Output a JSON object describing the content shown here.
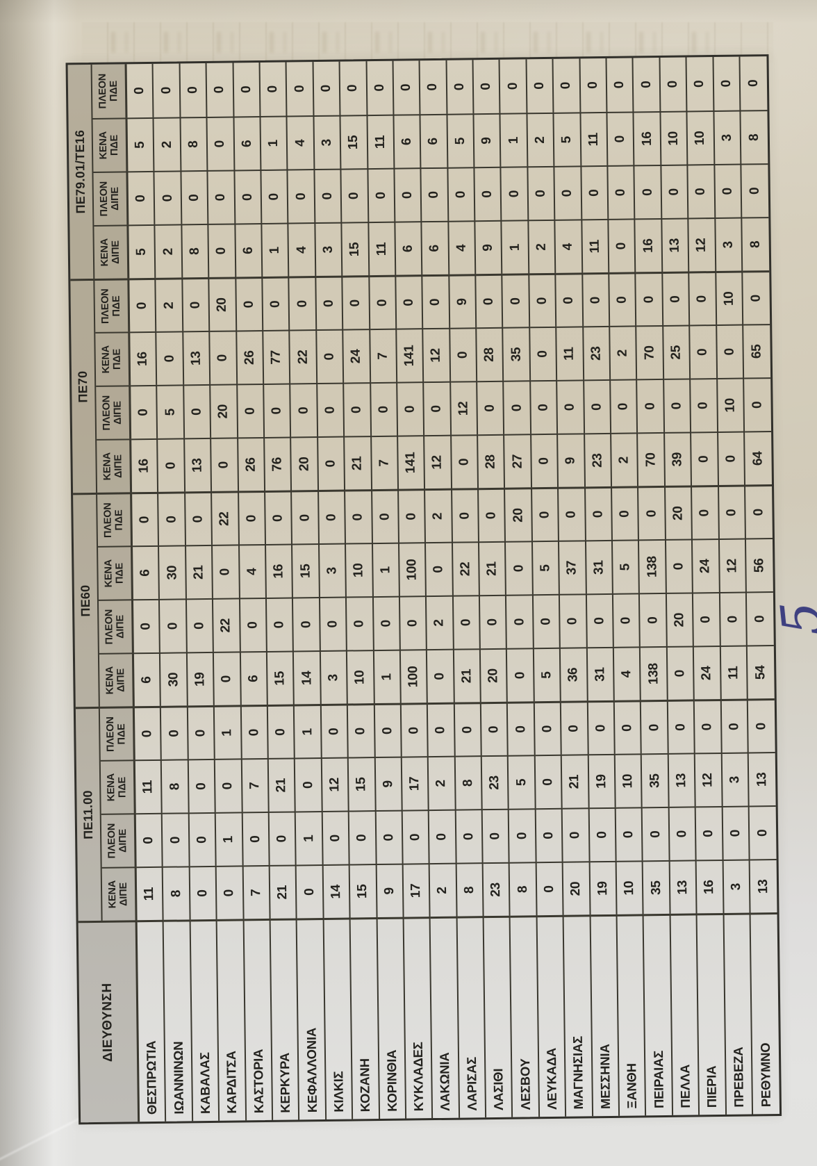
{
  "document": {
    "kind": "scanned_table_photo_rotated_90ccw",
    "annotations": {
      "handwritten_page_number": "5"
    },
    "colors": {
      "paper_beige": "#d1c9b5",
      "paper_gray": "#e2e2e0",
      "header_fill": "#b2aa98",
      "grid_line": "#38362f",
      "ink": "#23221e",
      "pen_blue": "#3e4080"
    },
    "table": {
      "corner_header": "ΔΙΕΥΘΥΝΣΗ",
      "groups": [
        {
          "label": "ΠΕ11.00"
        },
        {
          "label": "ΠΕ60"
        },
        {
          "label": "ΠΕ70"
        },
        {
          "label": "ΠΕ79.01/ΤΕ16"
        }
      ],
      "sub_headers": [
        {
          "line1": "ΚΕΝΑ",
          "line2": "ΔΙΠΕ"
        },
        {
          "line1": "ΠΛΕΟΝ",
          "line2": "ΔΙΠΕ"
        },
        {
          "line1": "ΚΕΝΑ",
          "line2": "ΠΔΕ"
        },
        {
          "line1": "ΠΛΕΟΝ",
          "line2": "ΠΔΕ"
        }
      ],
      "rows": [
        {
          "label": "ΘΕΣΠΡΩΤΙΑ",
          "values": [
            11,
            0,
            11,
            0,
            6,
            0,
            6,
            0,
            16,
            0,
            16,
            0,
            5,
            0,
            5,
            0
          ]
        },
        {
          "label": "ΙΩΑΝΝΙΝΩΝ",
          "values": [
            8,
            0,
            8,
            0,
            30,
            0,
            30,
            0,
            0,
            5,
            0,
            2,
            2,
            0,
            2,
            0
          ]
        },
        {
          "label": "ΚΑΒΑΛΑΣ",
          "values": [
            0,
            0,
            0,
            0,
            19,
            0,
            21,
            0,
            13,
            0,
            13,
            0,
            8,
            0,
            8,
            0
          ]
        },
        {
          "label": "ΚΑΡΔΙΤΣΑ",
          "values": [
            0,
            1,
            0,
            1,
            0,
            22,
            0,
            22,
            0,
            20,
            0,
            20,
            0,
            0,
            0,
            0
          ]
        },
        {
          "label": "ΚΑΣΤΟΡΙΑ",
          "values": [
            7,
            0,
            7,
            0,
            6,
            0,
            4,
            0,
            26,
            0,
            26,
            0,
            6,
            0,
            6,
            0
          ]
        },
        {
          "label": "ΚΕΡΚΥΡΑ",
          "values": [
            21,
            0,
            21,
            0,
            15,
            0,
            16,
            0,
            76,
            0,
            77,
            0,
            1,
            0,
            1,
            0
          ]
        },
        {
          "label": "ΚΕΦΑΛΛΟΝΙΑ",
          "values": [
            0,
            1,
            0,
            1,
            14,
            0,
            15,
            0,
            20,
            0,
            22,
            0,
            4,
            0,
            4,
            0
          ]
        },
        {
          "label": "ΚΙΛΚΙΣ",
          "values": [
            14,
            0,
            12,
            0,
            3,
            0,
            3,
            0,
            0,
            0,
            0,
            0,
            3,
            0,
            3,
            0
          ]
        },
        {
          "label": "ΚΟΖΑΝΗ",
          "values": [
            15,
            0,
            15,
            0,
            10,
            0,
            10,
            0,
            21,
            0,
            24,
            0,
            15,
            0,
            15,
            0
          ]
        },
        {
          "label": "ΚΟΡΙΝΘΙΑ",
          "values": [
            9,
            0,
            9,
            0,
            1,
            0,
            1,
            0,
            7,
            0,
            7,
            0,
            11,
            0,
            11,
            0
          ]
        },
        {
          "label": "ΚΥΚΛΑΔΕΣ",
          "values": [
            17,
            0,
            17,
            0,
            100,
            0,
            100,
            0,
            141,
            0,
            141,
            0,
            6,
            0,
            6,
            0
          ]
        },
        {
          "label": "ΛΑΚΩΝΙΑ",
          "values": [
            2,
            0,
            2,
            0,
            0,
            2,
            0,
            2,
            12,
            0,
            12,
            0,
            6,
            0,
            6,
            0
          ]
        },
        {
          "label": "ΛΑΡΙΣΑΣ",
          "values": [
            8,
            0,
            8,
            0,
            21,
            0,
            22,
            0,
            0,
            12,
            0,
            9,
            4,
            0,
            5,
            0
          ]
        },
        {
          "label": "ΛΑΣΙΘΙ",
          "values": [
            23,
            0,
            23,
            0,
            20,
            0,
            21,
            0,
            28,
            0,
            28,
            0,
            9,
            0,
            9,
            0
          ]
        },
        {
          "label": "ΛΕΣΒΟΥ",
          "values": [
            8,
            0,
            5,
            0,
            0,
            0,
            0,
            20,
            27,
            0,
            35,
            0,
            1,
            0,
            1,
            0
          ]
        },
        {
          "label": "ΛΕΥΚΑΔΑ",
          "values": [
            0,
            0,
            0,
            0,
            5,
            0,
            5,
            0,
            0,
            0,
            0,
            0,
            2,
            0,
            2,
            0
          ]
        },
        {
          "label": "ΜΑΓΝΗΣΙΑΣ",
          "values": [
            20,
            0,
            21,
            0,
            36,
            0,
            37,
            0,
            9,
            0,
            11,
            0,
            4,
            0,
            5,
            0
          ]
        },
        {
          "label": "ΜΕΣΣΗΝΙΑ",
          "values": [
            19,
            0,
            19,
            0,
            31,
            0,
            31,
            0,
            23,
            0,
            23,
            0,
            11,
            0,
            11,
            0
          ]
        },
        {
          "label": "ΞΑΝΘΗ",
          "values": [
            10,
            0,
            10,
            0,
            4,
            0,
            5,
            0,
            2,
            0,
            2,
            0,
            0,
            0,
            0,
            0
          ]
        },
        {
          "label": "ΠΕΙΡΑΙΑΣ",
          "values": [
            35,
            0,
            35,
            0,
            138,
            0,
            138,
            0,
            70,
            0,
            70,
            0,
            16,
            0,
            16,
            0
          ]
        },
        {
          "label": "ΠΕΛΛΑ",
          "values": [
            13,
            0,
            13,
            0,
            0,
            20,
            0,
            20,
            39,
            0,
            25,
            0,
            13,
            0,
            10,
            0
          ]
        },
        {
          "label": "ΠΙΕΡΙΑ",
          "values": [
            16,
            0,
            12,
            0,
            24,
            0,
            24,
            0,
            0,
            0,
            0,
            0,
            12,
            0,
            10,
            0
          ]
        },
        {
          "label": "ΠΡΕΒΕΖΑ",
          "values": [
            3,
            0,
            3,
            0,
            11,
            0,
            12,
            0,
            0,
            10,
            0,
            10,
            3,
            0,
            3,
            0
          ]
        },
        {
          "label": "ΡΕΘΥΜΝΟ",
          "values": [
            13,
            0,
            13,
            0,
            54,
            0,
            56,
            0,
            64,
            0,
            65,
            0,
            8,
            0,
            8,
            0
          ]
        }
      ]
    }
  }
}
